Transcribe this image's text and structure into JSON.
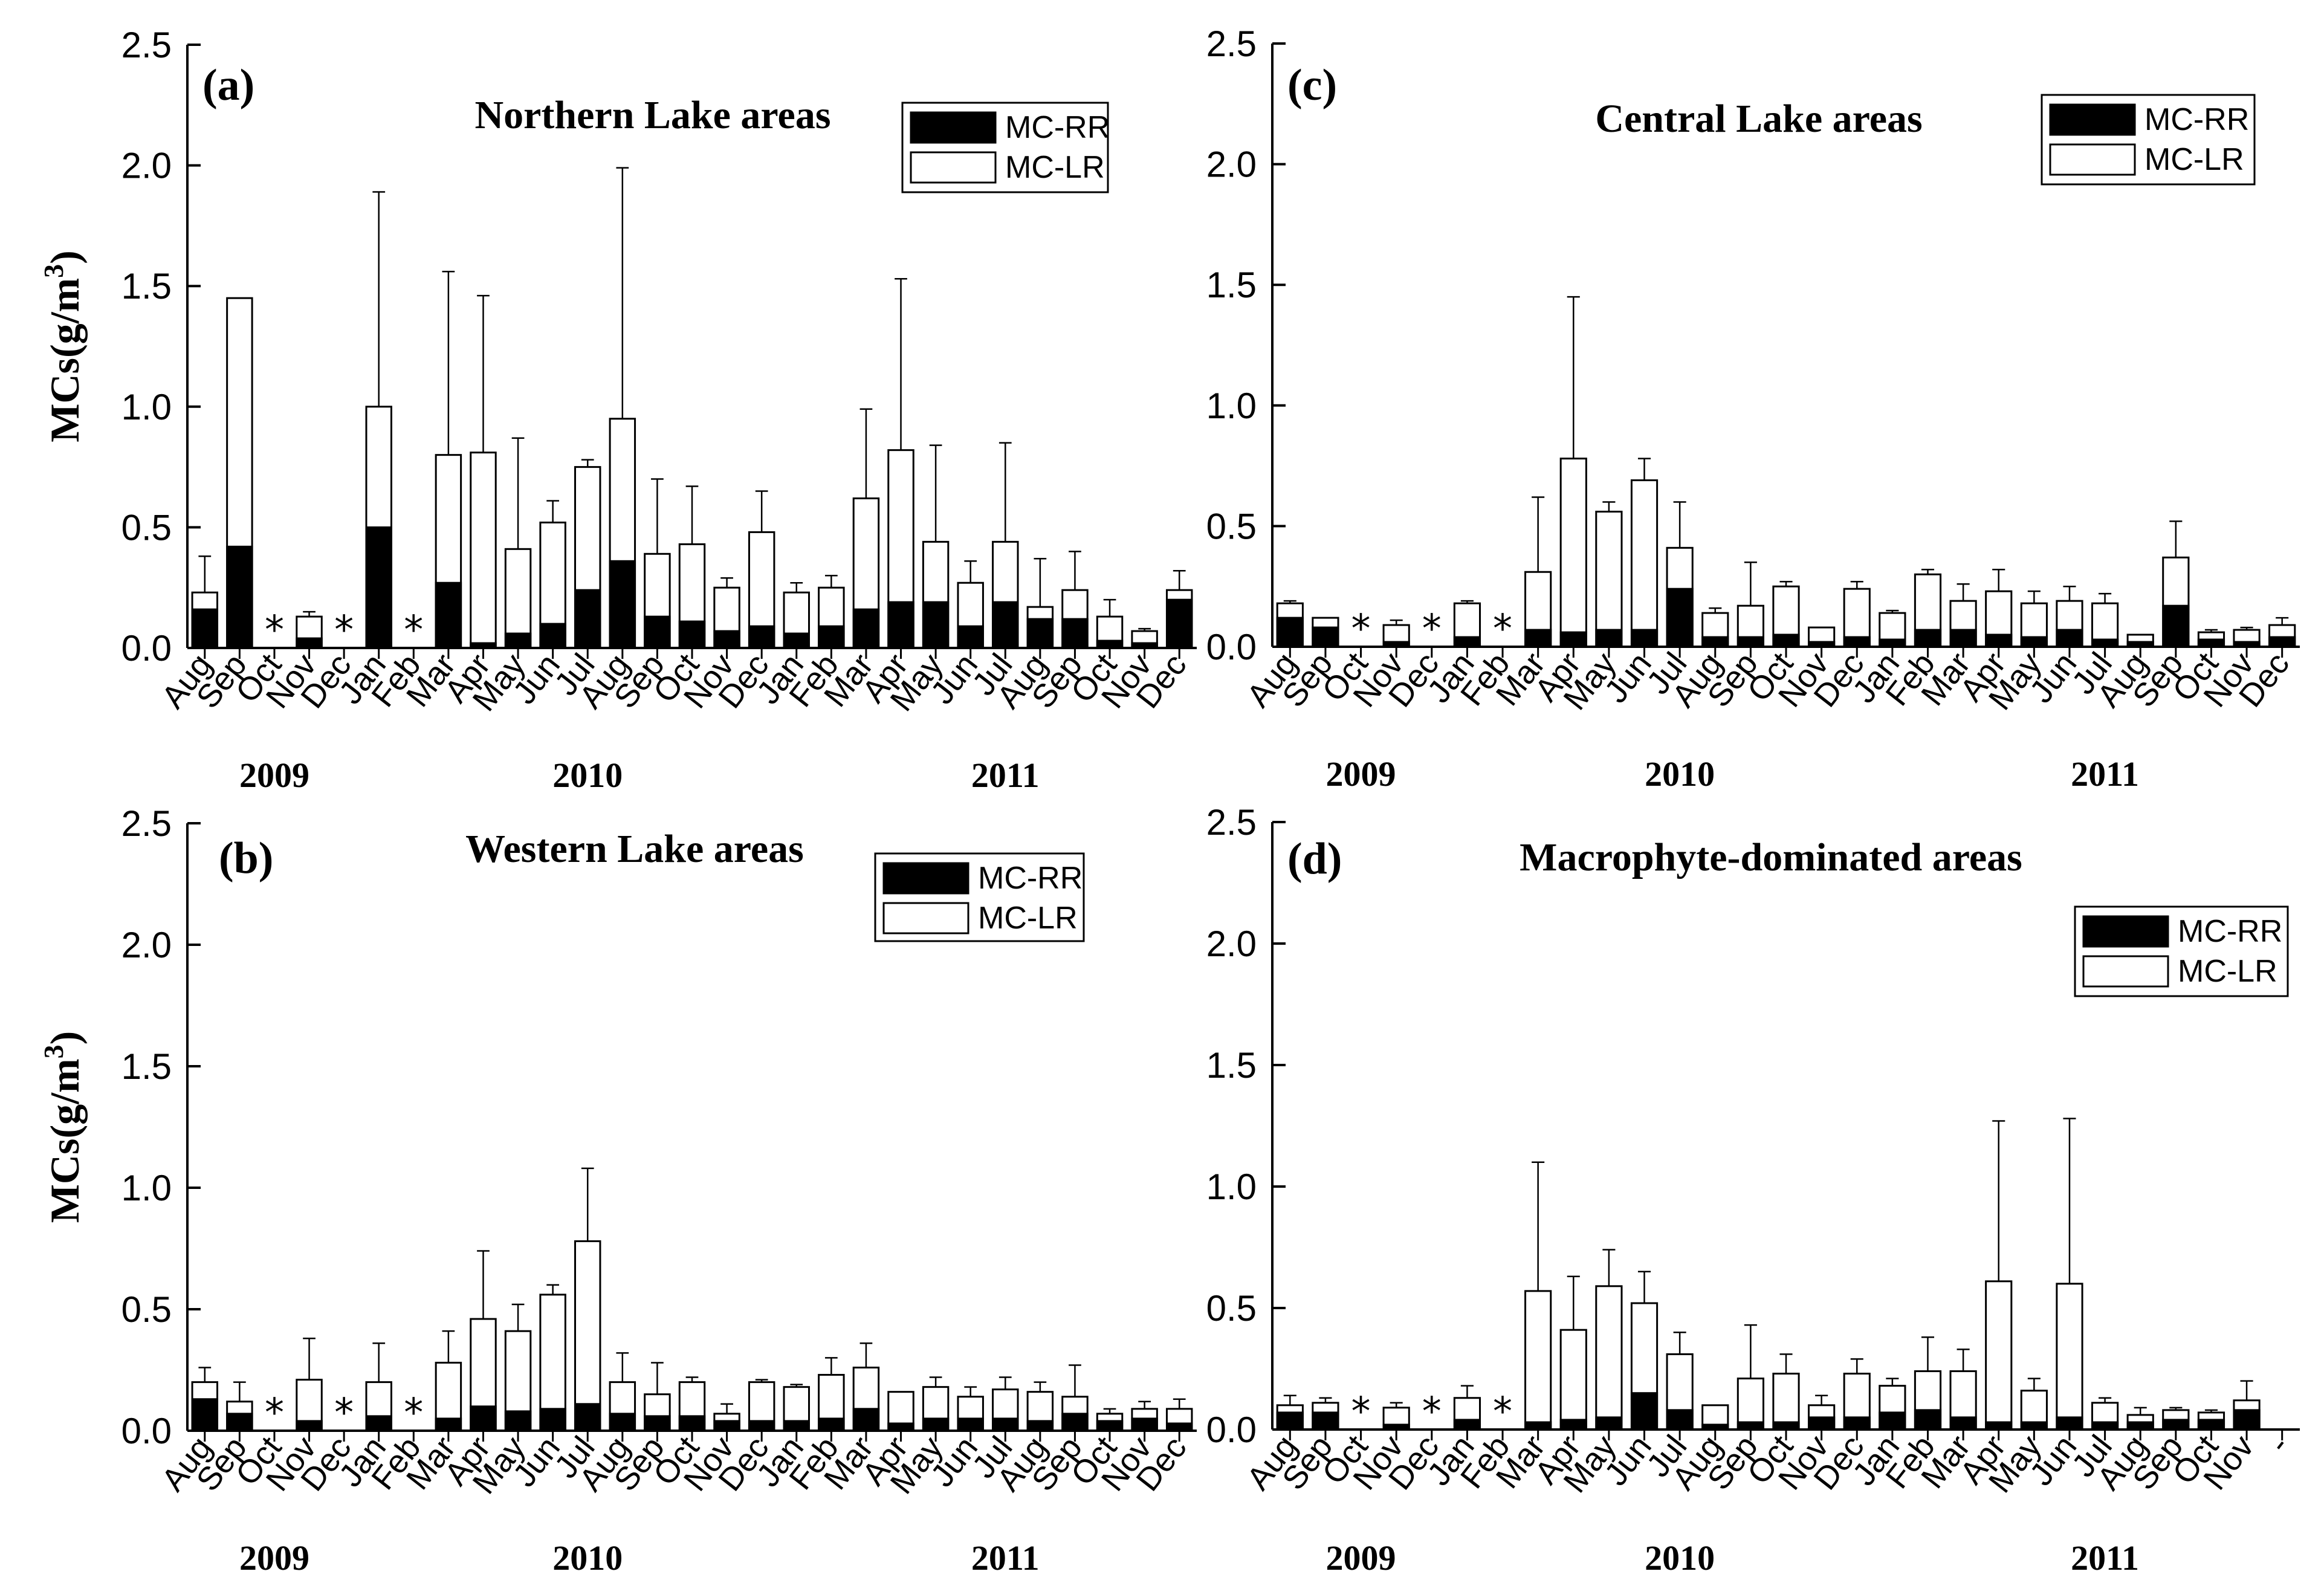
{
  "figure": {
    "ylabel": "MCs(g/m",
    "ylabel_sup": "3",
    "ylabel_close": ")"
  },
  "chart_data": [
    {
      "id": "a",
      "type": "bar",
      "stacked": true,
      "label": "(a)",
      "title": "Northern Lake areas",
      "ylim": [
        0,
        2.5
      ],
      "yticks": [
        "0.0",
        "0.5",
        "1.0",
        "1.5",
        "2.0",
        "2.5"
      ],
      "legend": {
        "position": "top-right",
        "entries": [
          {
            "name": "MC-RR",
            "color": "#000000"
          },
          {
            "name": "MC-LR",
            "color": "#ffffff"
          }
        ]
      },
      "years": [
        {
          "label": "2009",
          "at": 2
        },
        {
          "label": "2010",
          "at": 11
        },
        {
          "label": "2011",
          "at": 23
        }
      ],
      "categories": [
        "Aug",
        "Sep",
        "Oct",
        "Nov",
        "Dec",
        "Jan",
        "Feb",
        "Mar",
        "Apr",
        "May",
        "Jun",
        "Jul",
        "Aug",
        "Sep",
        "Oct",
        "Nov",
        "Dec",
        "Jan",
        "Feb",
        "Mar",
        "Apr",
        "May",
        "Jun",
        "Jul",
        "Aug",
        "Sep",
        "Oct",
        "Nov",
        "Dec"
      ],
      "missing_marker": "*",
      "series": [
        {
          "name": "MC-RR",
          "values": [
            0.16,
            0.42,
            null,
            0.04,
            null,
            0.5,
            null,
            0.27,
            0.02,
            0.06,
            0.1,
            0.24,
            0.36,
            0.13,
            0.11,
            0.07,
            0.09,
            0.06,
            0.09,
            0.16,
            0.19,
            0.19,
            0.09,
            0.19,
            0.12,
            0.12,
            0.03,
            0.02,
            0.2
          ]
        },
        {
          "name": "Total",
          "values": [
            0.23,
            1.45,
            null,
            0.13,
            null,
            1.0,
            null,
            0.8,
            0.81,
            0.41,
            0.52,
            0.75,
            0.95,
            0.39,
            0.43,
            0.25,
            0.48,
            0.23,
            0.25,
            0.62,
            0.82,
            0.44,
            0.27,
            0.44,
            0.17,
            0.24,
            0.13,
            0.07,
            0.24
          ]
        },
        {
          "name": "Error",
          "values": [
            0.15,
            0,
            null,
            0.02,
            null,
            0.89,
            null,
            0.76,
            0.65,
            0.46,
            0.09,
            0.03,
            1.04,
            0.31,
            0.24,
            0.04,
            0.17,
            0.04,
            0.05,
            0.37,
            0.71,
            0.4,
            0.09,
            0.41,
            0.2,
            0.16,
            0.07,
            0.01,
            0.08
          ]
        }
      ]
    },
    {
      "id": "b",
      "type": "bar",
      "stacked": true,
      "label": "(b)",
      "title": "Western Lake areas",
      "ylim": [
        0,
        2.5
      ],
      "yticks": [
        "0.0",
        "0.5",
        "1.0",
        "1.5",
        "2.0",
        "2.5"
      ],
      "legend": {
        "position": "top-right",
        "entries": [
          {
            "name": "MC-RR",
            "color": "#000000"
          },
          {
            "name": "MC-LR",
            "color": "#ffffff"
          }
        ]
      },
      "years": [
        {
          "label": "2009",
          "at": 2
        },
        {
          "label": "2010",
          "at": 11
        },
        {
          "label": "2011",
          "at": 23
        }
      ],
      "categories": [
        "Aug",
        "Sep",
        "Oct",
        "Nov",
        "Dec",
        "Jan",
        "Feb",
        "Mar",
        "Apr",
        "May",
        "Jun",
        "Jul",
        "Aug",
        "Sep",
        "Oct",
        "Nov",
        "Dec",
        "Jan",
        "Feb",
        "Mar",
        "Apr",
        "May",
        "Jun",
        "Jul",
        "Aug",
        "Sep",
        "Oct",
        "Nov",
        "Dec"
      ],
      "missing_marker": "*",
      "series": [
        {
          "name": "MC-RR",
          "values": [
            0.13,
            0.07,
            null,
            0.04,
            null,
            0.06,
            null,
            0.05,
            0.1,
            0.08,
            0.09,
            0.11,
            0.07,
            0.06,
            0.06,
            0.04,
            0.04,
            0.04,
            0.05,
            0.09,
            0.03,
            0.05,
            0.05,
            0.05,
            0.04,
            0.07,
            0.04,
            0.05,
            0.03
          ]
        },
        {
          "name": "Total",
          "values": [
            0.2,
            0.12,
            null,
            0.21,
            null,
            0.2,
            null,
            0.28,
            0.46,
            0.41,
            0.56,
            0.78,
            0.2,
            0.15,
            0.2,
            0.07,
            0.2,
            0.18,
            0.23,
            0.26,
            0.16,
            0.18,
            0.14,
            0.17,
            0.16,
            0.14,
            0.07,
            0.09,
            0.09
          ]
        },
        {
          "name": "Error",
          "values": [
            0.06,
            0.08,
            null,
            0.17,
            null,
            0.16,
            null,
            0.13,
            0.28,
            0.11,
            0.04,
            0.3,
            0.12,
            0.13,
            0.02,
            0.04,
            0.01,
            0.01,
            0.07,
            0.1,
            0,
            0.04,
            0.04,
            0.05,
            0.04,
            0.13,
            0.02,
            0.03,
            0.04
          ]
        }
      ]
    },
    {
      "id": "c",
      "type": "bar",
      "stacked": true,
      "label": "(c)",
      "title": "Central Lake areas",
      "ylim": [
        0,
        2.5
      ],
      "yticks": [
        "0.0",
        "0.5",
        "1.0",
        "1.5",
        "2.0",
        "2.5"
      ],
      "legend": {
        "position": "top-right",
        "entries": [
          {
            "name": "MC-RR",
            "color": "#000000"
          },
          {
            "name": "MC-LR",
            "color": "#ffffff"
          }
        ]
      },
      "years": [
        {
          "label": "2009",
          "at": 2
        },
        {
          "label": "2010",
          "at": 11
        },
        {
          "label": "2011",
          "at": 23
        }
      ],
      "categories": [
        "Aug",
        "Sep",
        "Oct",
        "Nov",
        "Dec",
        "Jan",
        "Feb",
        "Mar",
        "Apr",
        "May",
        "Jun",
        "Jul",
        "Aug",
        "Sep",
        "Oct",
        "Nov",
        "Dec",
        "Jan",
        "Feb",
        "Mar",
        "Apr",
        "May",
        "Jun",
        "Jul",
        "Aug",
        "Sep",
        "Oct",
        "Nov",
        "Dec"
      ],
      "missing_marker": "*",
      "series": [
        {
          "name": "MC-RR",
          "values": [
            0.12,
            0.08,
            null,
            0.02,
            null,
            0.04,
            null,
            0.07,
            0.06,
            0.07,
            0.07,
            0.24,
            0.04,
            0.04,
            0.05,
            0.02,
            0.04,
            0.03,
            0.07,
            0.07,
            0.05,
            0.04,
            0.07,
            0.03,
            0.02,
            0.17,
            0.03,
            0.02,
            0.04
          ]
        },
        {
          "name": "Total",
          "values": [
            0.18,
            0.12,
            null,
            0.09,
            null,
            0.18,
            null,
            0.31,
            0.78,
            0.56,
            0.69,
            0.41,
            0.14,
            0.17,
            0.25,
            0.08,
            0.24,
            0.14,
            0.3,
            0.19,
            0.23,
            0.18,
            0.19,
            0.18,
            0.05,
            0.37,
            0.06,
            0.07,
            0.09
          ]
        },
        {
          "name": "Error",
          "values": [
            0.01,
            0,
            null,
            0.02,
            null,
            0.01,
            null,
            0.31,
            0.67,
            0.04,
            0.09,
            0.19,
            0.02,
            0.18,
            0.02,
            0,
            0.03,
            0.01,
            0.02,
            0.07,
            0.09,
            0.05,
            0.06,
            0.04,
            0,
            0.15,
            0.01,
            0.01,
            0.03
          ]
        }
      ]
    },
    {
      "id": "d",
      "type": "bar",
      "stacked": true,
      "label": "(d)",
      "title": "Macrophyte-dominated areas",
      "ylim": [
        0,
        2.5
      ],
      "yticks": [
        "0.0",
        "0.5",
        "1.0",
        "1.5",
        "2.0",
        "2.5"
      ],
      "legend": {
        "position": "top-right",
        "entries": [
          {
            "name": "MC-RR",
            "color": "#000000"
          },
          {
            "name": "MC-LR",
            "color": "#ffffff"
          }
        ]
      },
      "years": [
        {
          "label": "2009",
          "at": 2
        },
        {
          "label": "2010",
          "at": 11
        },
        {
          "label": "2011",
          "at": 23
        }
      ],
      "categories": [
        "Aug",
        "Sep",
        "Oct",
        "Nov",
        "Dec",
        "Jan",
        "Feb",
        "Mar",
        "Apr",
        "May",
        "Jun",
        "Jul",
        "Aug",
        "Sep",
        "Oct",
        "Nov",
        "Dec",
        "Jan",
        "Feb",
        "Mar",
        "Apr",
        "May",
        "Jun",
        "Jul",
        "Aug",
        "Sep",
        "Oct",
        "Nov",
        "-"
      ],
      "missing_marker": "*",
      "series": [
        {
          "name": "MC-RR",
          "values": [
            0.07,
            0.07,
            null,
            0.02,
            null,
            0.04,
            null,
            0.03,
            0.04,
            0.05,
            0.15,
            0.08,
            0.02,
            0.03,
            0.03,
            0.05,
            0.05,
            0.07,
            0.08,
            0.05,
            0.03,
            0.03,
            0.05,
            0.03,
            0.03,
            0.04,
            0.04,
            0.08,
            null
          ]
        },
        {
          "name": "Total",
          "values": [
            0.1,
            0.11,
            null,
            0.09,
            null,
            0.13,
            null,
            0.57,
            0.41,
            0.59,
            0.52,
            0.31,
            0.1,
            0.21,
            0.23,
            0.1,
            0.23,
            0.18,
            0.24,
            0.24,
            0.61,
            0.16,
            0.6,
            0.11,
            0.06,
            0.08,
            0.07,
            0.12,
            null
          ]
        },
        {
          "name": "Error",
          "values": [
            0.04,
            0.02,
            null,
            0.02,
            null,
            0.05,
            null,
            0.53,
            0.22,
            0.15,
            0.13,
            0.09,
            0,
            0.22,
            0.08,
            0.04,
            0.06,
            0.03,
            0.14,
            0.09,
            0.66,
            0.05,
            0.68,
            0.02,
            0.03,
            0.01,
            0.01,
            0.08,
            null
          ]
        }
      ]
    }
  ]
}
